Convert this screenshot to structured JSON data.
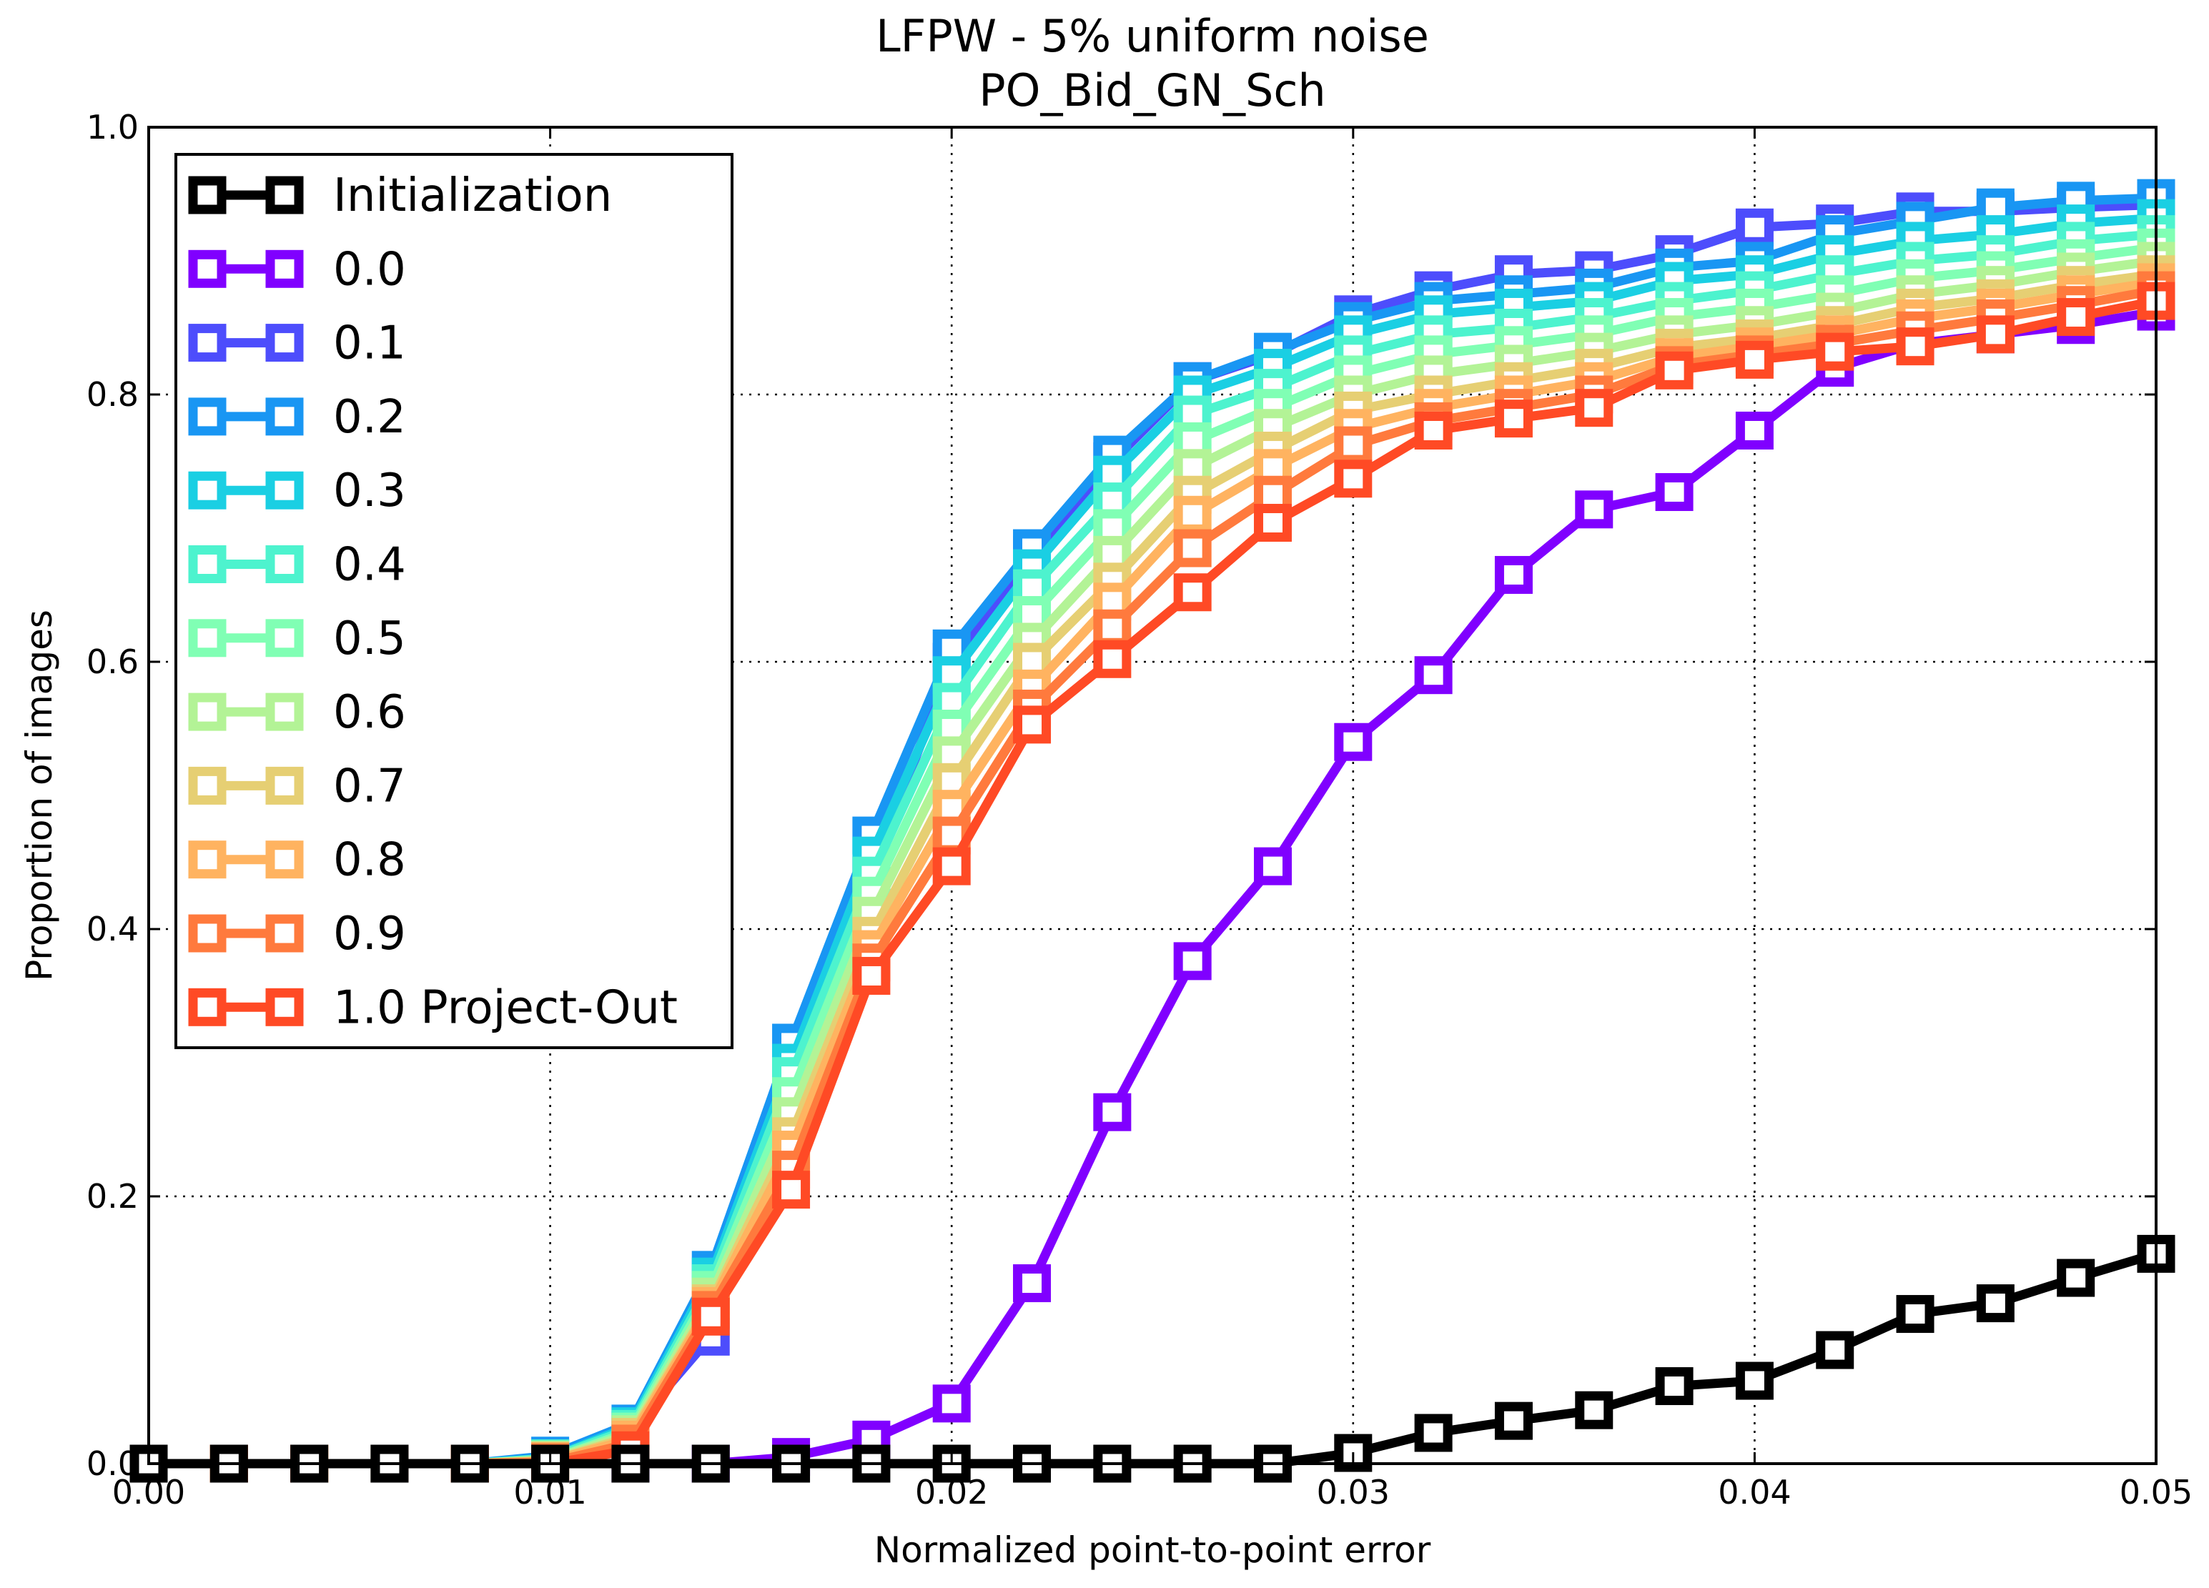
{
  "chart_data": {
    "type": "line",
    "title": "LFPW - 5% uniform noise",
    "subtitle": "PO_Bid_GN_Sch",
    "xlabel": "Normalized point-to-point error",
    "ylabel": "Proportion of images",
    "xlim": [
      0.0,
      0.05
    ],
    "ylim": [
      0.0,
      1.0
    ],
    "grid": true,
    "legend_position": "top-left",
    "xticks": [
      0.0,
      0.01,
      0.02,
      0.03,
      0.04,
      0.05
    ],
    "xtick_labels": [
      "0.00",
      "0.01",
      "0.02",
      "0.03",
      "0.04",
      "0.05"
    ],
    "yticks": [
      0.0,
      0.2,
      0.4,
      0.6,
      0.8,
      1.0
    ],
    "ytick_labels": [
      "0.0",
      "0.2",
      "0.4",
      "0.6",
      "0.8",
      "1.0"
    ],
    "x": [
      0.0,
      0.002,
      0.004,
      0.006,
      0.008,
      0.01,
      0.012,
      0.014,
      0.016,
      0.018,
      0.02,
      0.022,
      0.024,
      0.026,
      0.028,
      0.03,
      0.032,
      0.034,
      0.036,
      0.038,
      0.04,
      0.042,
      0.044,
      0.046,
      0.048,
      0.05
    ],
    "series": [
      {
        "name": "Initialization",
        "color": "#000000",
        "values": [
          0,
          0,
          0,
          0,
          0,
          0,
          0,
          0,
          0,
          0,
          0,
          0,
          0,
          0,
          0,
          0.008,
          0.023,
          0.032,
          0.04,
          0.058,
          0.062,
          0.085,
          0.112,
          0.12,
          0.139,
          0.157
        ]
      },
      {
        "name": "0.0",
        "color": "#8000ff",
        "values": [
          0,
          0,
          0,
          0,
          0,
          0,
          0,
          0,
          0.005,
          0.018,
          0.045,
          0.135,
          0.263,
          0.376,
          0.447,
          0.54,
          0.59,
          0.665,
          0.714,
          0.727,
          0.773,
          0.82,
          0.838,
          0.845,
          0.852,
          0.862
        ]
      },
      {
        "name": "0.1",
        "color": "#4d4dfc",
        "values": [
          0,
          0,
          0,
          0,
          0,
          0.004,
          0.025,
          0.095,
          0.3,
          0.44,
          0.6,
          0.68,
          0.75,
          0.81,
          0.83,
          0.86,
          0.878,
          0.89,
          0.893,
          0.905,
          0.925,
          0.928,
          0.937,
          0.937,
          0.94,
          0.942
        ]
      },
      {
        "name": "0.2",
        "color": "#1996f3",
        "values": [
          0,
          0,
          0,
          0,
          0,
          0.006,
          0.03,
          0.145,
          0.315,
          0.47,
          0.61,
          0.685,
          0.755,
          0.81,
          0.832,
          0.855,
          0.87,
          0.875,
          0.88,
          0.895,
          0.9,
          0.92,
          0.93,
          0.94,
          0.945,
          0.947
        ]
      },
      {
        "name": "0.3",
        "color": "#1acfe3",
        "values": [
          0,
          0,
          0,
          0,
          0,
          0.004,
          0.028,
          0.14,
          0.3,
          0.455,
          0.59,
          0.67,
          0.74,
          0.8,
          0.82,
          0.845,
          0.86,
          0.865,
          0.87,
          0.885,
          0.89,
          0.905,
          0.915,
          0.92,
          0.928,
          0.932
        ]
      },
      {
        "name": "0.4",
        "color": "#4df3ce",
        "values": [
          0,
          0,
          0,
          0,
          0,
          0.004,
          0.026,
          0.135,
          0.29,
          0.44,
          0.57,
          0.655,
          0.72,
          0.785,
          0.805,
          0.83,
          0.845,
          0.85,
          0.858,
          0.87,
          0.878,
          0.89,
          0.9,
          0.905,
          0.915,
          0.92
        ]
      },
      {
        "name": "0.5",
        "color": "#80ffb4",
        "values": [
          0,
          0,
          0,
          0,
          0,
          0.003,
          0.024,
          0.13,
          0.275,
          0.425,
          0.55,
          0.635,
          0.7,
          0.765,
          0.79,
          0.815,
          0.83,
          0.837,
          0.845,
          0.858,
          0.865,
          0.875,
          0.887,
          0.893,
          0.902,
          0.91
        ]
      },
      {
        "name": "0.6",
        "color": "#b3f396",
        "values": [
          0,
          0,
          0,
          0,
          0,
          0.003,
          0.022,
          0.125,
          0.26,
          0.41,
          0.53,
          0.615,
          0.68,
          0.745,
          0.775,
          0.8,
          0.815,
          0.823,
          0.832,
          0.845,
          0.852,
          0.862,
          0.875,
          0.882,
          0.892,
          0.9
        ]
      },
      {
        "name": "0.7",
        "color": "#e6cf73",
        "values": [
          0,
          0,
          0,
          0,
          0,
          0.002,
          0.02,
          0.12,
          0.245,
          0.395,
          0.51,
          0.6,
          0.66,
          0.725,
          0.758,
          0.788,
          0.8,
          0.81,
          0.82,
          0.835,
          0.842,
          0.852,
          0.865,
          0.872,
          0.882,
          0.89
        ]
      },
      {
        "name": "0.8",
        "color": "#ffb360",
        "values": [
          0,
          0,
          0,
          0,
          0,
          0.002,
          0.018,
          0.118,
          0.235,
          0.385,
          0.49,
          0.58,
          0.645,
          0.71,
          0.745,
          0.775,
          0.79,
          0.8,
          0.81,
          0.828,
          0.836,
          0.845,
          0.857,
          0.865,
          0.875,
          0.884
        ]
      },
      {
        "name": "0.9",
        "color": "#ff7a3d",
        "values": [
          0,
          0,
          0,
          0,
          0,
          0.001,
          0.015,
          0.115,
          0.22,
          0.375,
          0.47,
          0.565,
          0.625,
          0.685,
          0.725,
          0.762,
          0.78,
          0.79,
          0.8,
          0.822,
          0.83,
          0.838,
          0.848,
          0.857,
          0.867,
          0.878
        ]
      },
      {
        "name": "1.0 Project-Out",
        "color": "#ff4a25",
        "values": [
          0,
          0,
          0,
          0,
          0,
          0,
          0.01,
          0.11,
          0.205,
          0.365,
          0.447,
          0.553,
          0.602,
          0.652,
          0.704,
          0.737,
          0.773,
          0.782,
          0.79,
          0.818,
          0.826,
          0.832,
          0.836,
          0.845,
          0.858,
          0.87
        ]
      }
    ]
  }
}
